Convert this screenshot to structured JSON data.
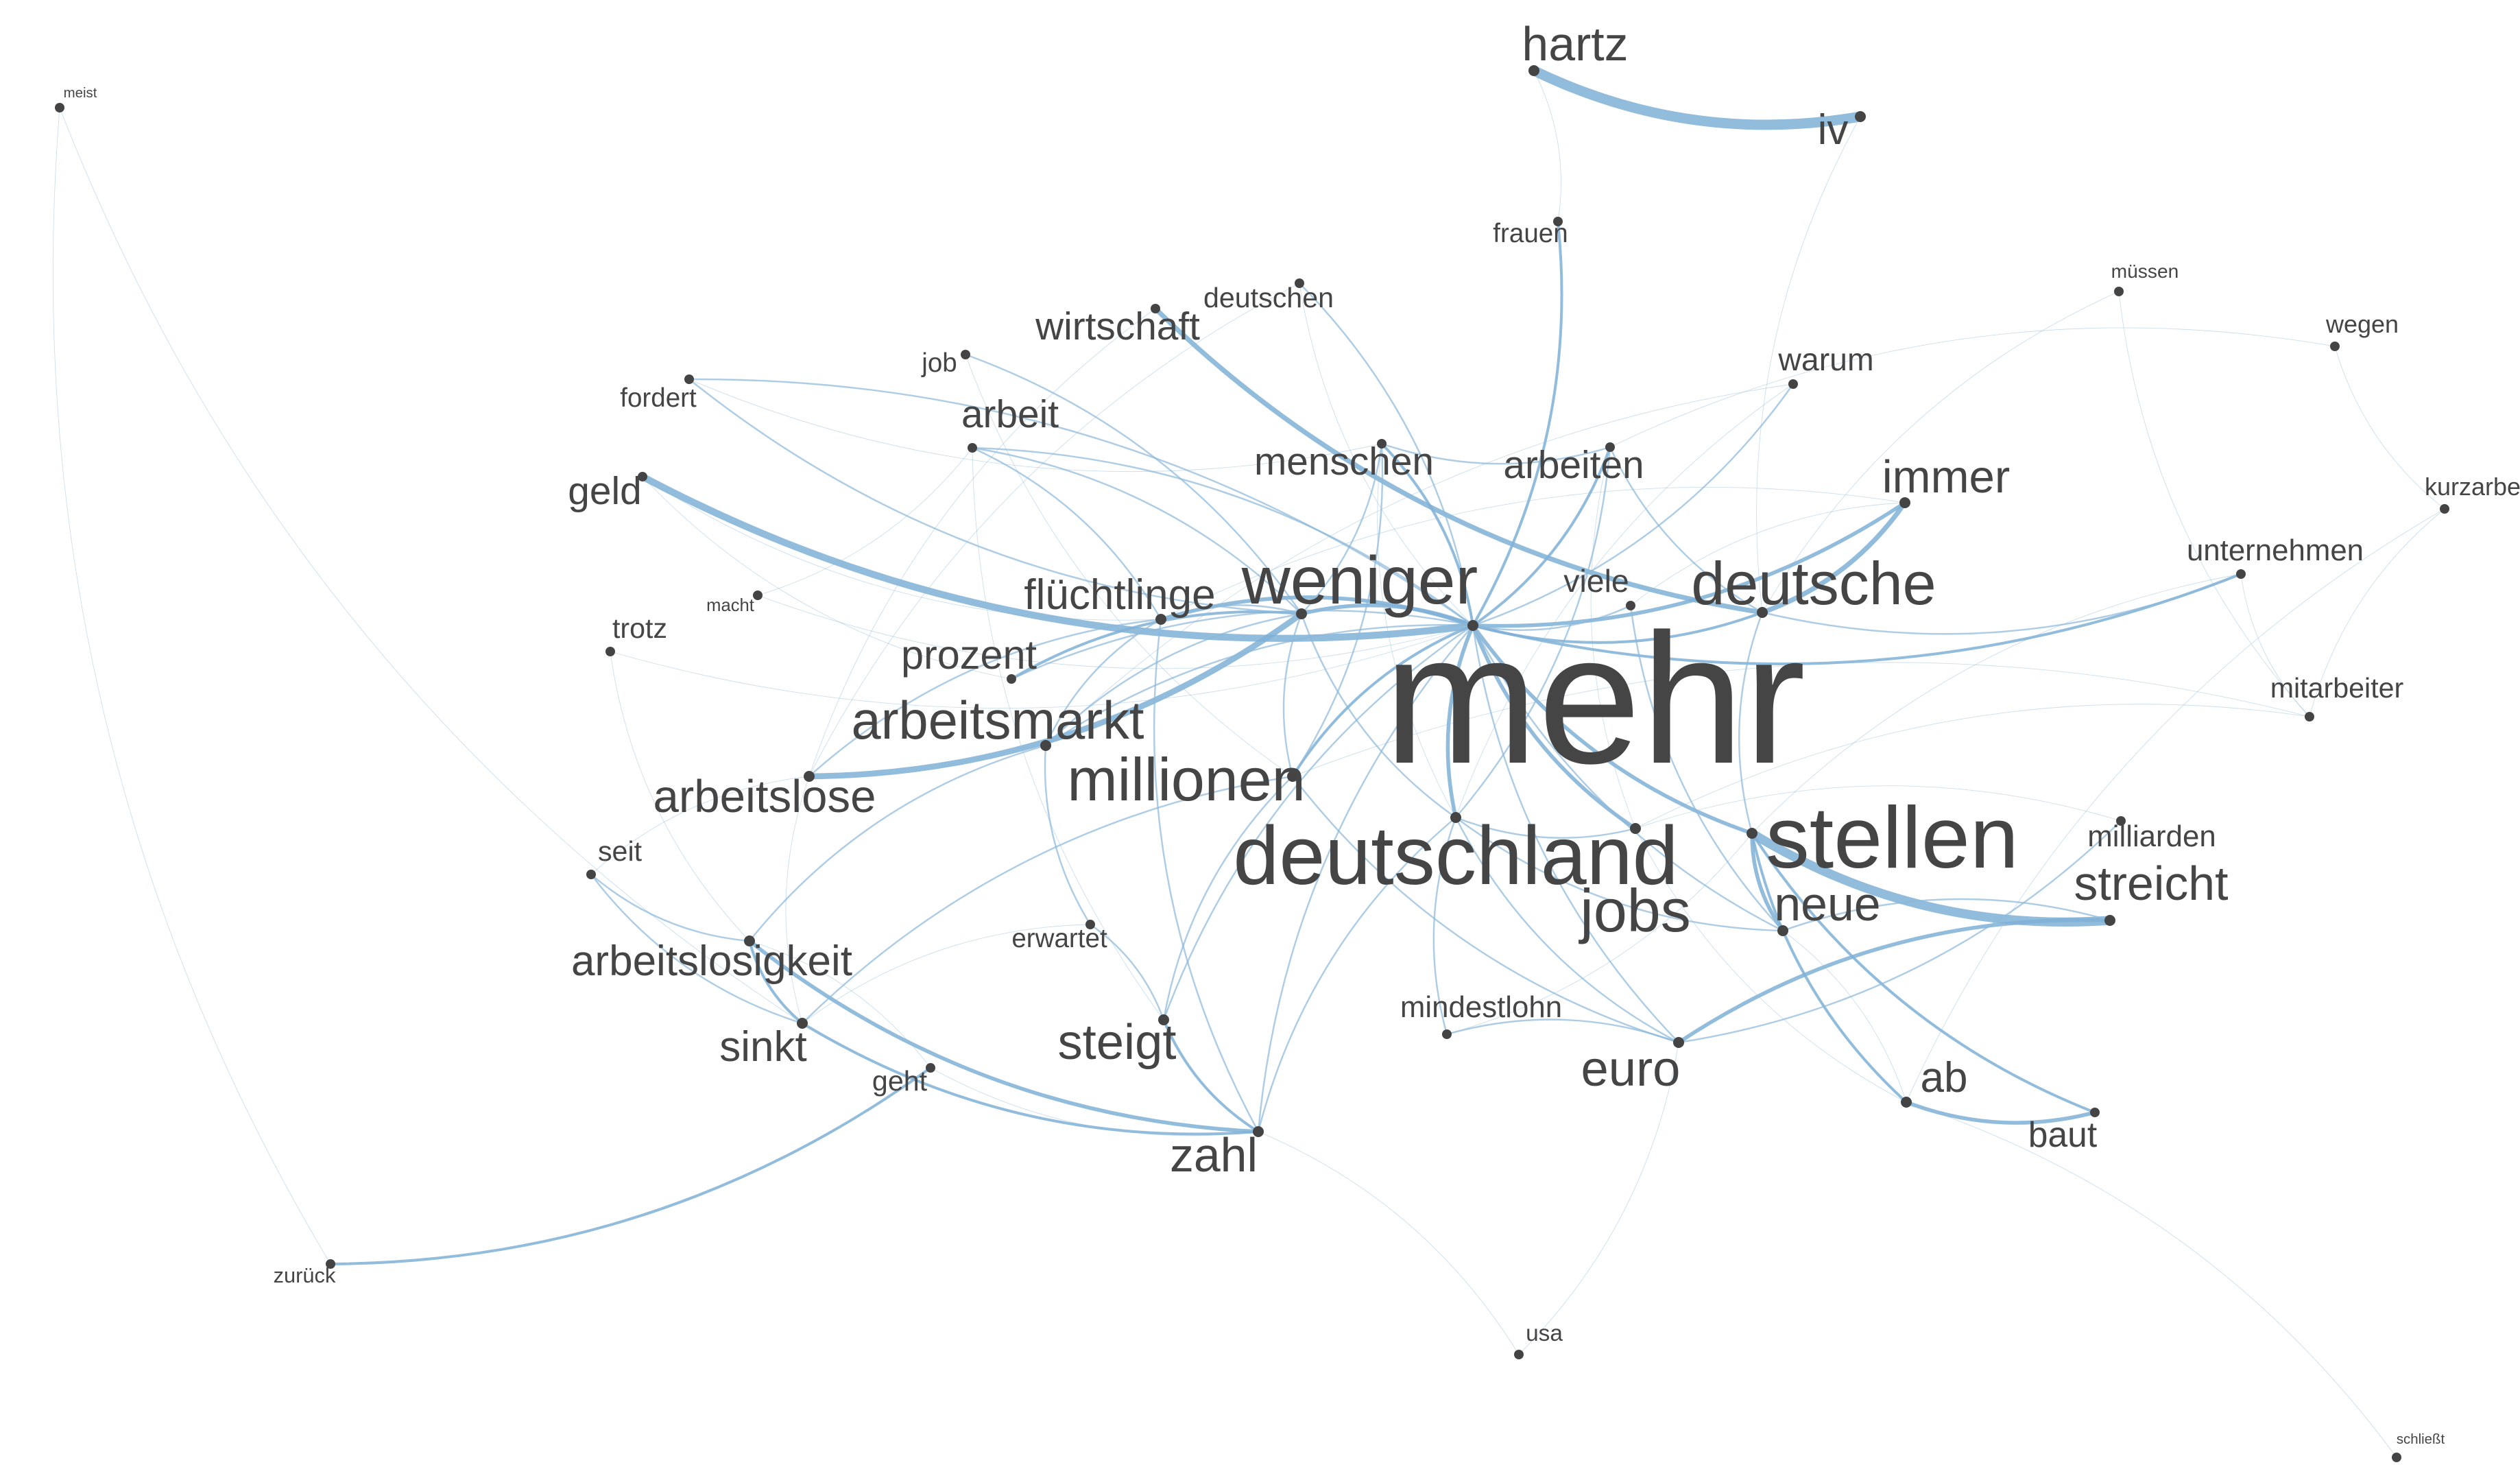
{
  "graph": {
    "type": "word-cooccurrence-network",
    "colors": {
      "edge": "#8cb8d8",
      "edge_strong": "#7fb0d6",
      "node": "#444444",
      "label": "#454545",
      "background": "#ffffff"
    },
    "nodes": [
      {
        "id": "mehr",
        "label": "mehr",
        "weight": 100
      },
      {
        "id": "stellen",
        "label": "stellen",
        "weight": 48
      },
      {
        "id": "deutschland",
        "label": "deutschland",
        "weight": 42
      },
      {
        "id": "weniger",
        "label": "weniger",
        "weight": 34
      },
      {
        "id": "deutsche",
        "label": "deutsche",
        "weight": 30
      },
      {
        "id": "millionen",
        "label": "millionen",
        "weight": 30
      },
      {
        "id": "jobs",
        "label": "jobs",
        "weight": 30
      },
      {
        "id": "arbeitsmarkt",
        "label": "arbeitsmarkt",
        "weight": 26
      },
      {
        "id": "steigt",
        "label": "steigt",
        "weight": 24
      },
      {
        "id": "euro",
        "label": "euro",
        "weight": 24
      },
      {
        "id": "neue",
        "label": "neue",
        "weight": 23
      },
      {
        "id": "streicht",
        "label": "streicht",
        "weight": 23
      },
      {
        "id": "zahl",
        "label": "zahl",
        "weight": 23
      },
      {
        "id": "hartz",
        "label": "hartz",
        "weight": 23
      },
      {
        "id": "arbeitslose",
        "label": "arbeitslose",
        "weight": 22
      },
      {
        "id": "immer",
        "label": "immer",
        "weight": 22
      },
      {
        "id": "flüchtlinge",
        "label": "flüchtlinge",
        "weight": 20
      },
      {
        "id": "arbeitslosigkeit",
        "label": "arbeitslosigkeit",
        "weight": 20
      },
      {
        "id": "sinkt",
        "label": "sinkt",
        "weight": 20
      },
      {
        "id": "ab",
        "label": "ab",
        "weight": 20
      },
      {
        "id": "iv",
        "label": "iv",
        "weight": 20
      },
      {
        "id": "prozent",
        "label": "prozent",
        "weight": 19
      },
      {
        "id": "geld",
        "label": "geld",
        "weight": 18
      },
      {
        "id": "menschen",
        "label": "menschen",
        "weight": 18
      },
      {
        "id": "wirtschaft",
        "label": "wirtschaft",
        "weight": 18
      },
      {
        "id": "arbeiten",
        "label": "arbeiten",
        "weight": 18
      },
      {
        "id": "arbeit",
        "label": "arbeit",
        "weight": 18
      },
      {
        "id": "baut",
        "label": "baut",
        "weight": 16
      },
      {
        "id": "viele",
        "label": "viele",
        "weight": 14
      },
      {
        "id": "warum",
        "label": "warum",
        "weight": 14
      },
      {
        "id": "unternehmen",
        "label": "unternehmen",
        "weight": 13
      },
      {
        "id": "milliarden",
        "label": "milliarden",
        "weight": 13
      },
      {
        "id": "mindestlohn",
        "label": "mindestlohn",
        "weight": 13
      },
      {
        "id": "deutschen",
        "label": "deutschen",
        "weight": 12
      },
      {
        "id": "mitarbeiter",
        "label": "mitarbeiter",
        "weight": 12
      },
      {
        "id": "seit",
        "label": "seit",
        "weight": 12
      },
      {
        "id": "trotz",
        "label": "trotz",
        "weight": 12
      },
      {
        "id": "job",
        "label": "job",
        "weight": 11
      },
      {
        "id": "fordert",
        "label": "fordert",
        "weight": 11
      },
      {
        "id": "frauen",
        "label": "frauen",
        "weight": 11
      },
      {
        "id": "geht",
        "label": "geht",
        "weight": 12
      },
      {
        "id": "erwartet",
        "label": "erwartet",
        "weight": 11
      },
      {
        "id": "kurzarbeit",
        "label": "kurzarbeit",
        "weight": 10
      },
      {
        "id": "wegen",
        "label": "wegen",
        "weight": 10
      },
      {
        "id": "usa",
        "label": "usa",
        "weight": 9
      },
      {
        "id": "zurück",
        "label": "zurück",
        "weight": 8
      },
      {
        "id": "müssen",
        "label": "müssen",
        "weight": 7
      },
      {
        "id": "macht",
        "label": "macht",
        "weight": 6
      },
      {
        "id": "meist",
        "label": "meist",
        "weight": 4
      },
      {
        "id": "schließt",
        "label": "schließt",
        "weight": 4
      }
    ],
    "edges": [
      {
        "source": "hartz",
        "target": "iv",
        "weight": 10
      },
      {
        "source": "stellen",
        "target": "streicht",
        "weight": 9
      },
      {
        "source": "geld",
        "target": "mehr",
        "weight": 7
      },
      {
        "source": "arbeitslose",
        "target": "weniger",
        "weight": 6
      },
      {
        "source": "wirtschaft",
        "target": "deutsche",
        "weight": 5
      },
      {
        "source": "deutsche",
        "target": "immer",
        "weight": 5
      },
      {
        "source": "mehr",
        "target": "immer",
        "weight": 4
      },
      {
        "source": "mehr",
        "target": "flüchtlinge",
        "weight": 4
      },
      {
        "source": "mehr",
        "target": "jobs",
        "weight": 4
      },
      {
        "source": "mehr",
        "target": "stellen",
        "weight": 4
      },
      {
        "source": "mehr",
        "target": "weniger",
        "weight": 4
      },
      {
        "source": "mehr",
        "target": "deutschland",
        "weight": 4
      },
      {
        "source": "stellen",
        "target": "neue",
        "weight": 4
      },
      {
        "source": "streicht",
        "target": "euro",
        "weight": 4
      },
      {
        "source": "ab",
        "target": "baut",
        "weight": 4
      },
      {
        "source": "stellen",
        "target": "baut",
        "weight": 3
      },
      {
        "source": "stellen",
        "target": "ab",
        "weight": 3
      },
      {
        "source": "arbeitslosigkeit",
        "target": "zahl",
        "weight": 4
      },
      {
        "source": "sinkt",
        "target": "zahl",
        "weight": 3
      },
      {
        "source": "steigt",
        "target": "zahl",
        "weight": 3
      },
      {
        "source": "arbeitslosigkeit",
        "target": "sinkt",
        "weight": 3
      },
      {
        "source": "zurück",
        "target": "geht",
        "weight": 3
      },
      {
        "source": "mehr",
        "target": "frauen",
        "weight": 3
      },
      {
        "source": "mehr",
        "target": "arbeiten",
        "weight": 3
      },
      {
        "source": "mehr",
        "target": "menschen",
        "weight": 3
      },
      {
        "source": "mehr",
        "target": "millionen",
        "weight": 3
      },
      {
        "source": "mehr",
        "target": "deutsche",
        "weight": 3
      },
      {
        "source": "mehr",
        "target": "unternehmen",
        "weight": 3
      },
      {
        "source": "mehr",
        "target": "arbeit",
        "weight": 2
      },
      {
        "source": "mehr",
        "target": "fordert",
        "weight": 2
      },
      {
        "source": "mehr",
        "target": "euro",
        "weight": 2
      },
      {
        "source": "mehr",
        "target": "neue",
        "weight": 2
      },
      {
        "source": "mehr",
        "target": "viele",
        "weight": 2
      },
      {
        "source": "mehr",
        "target": "warum",
        "weight": 2
      },
      {
        "source": "mehr",
        "target": "zahl",
        "weight": 2
      },
      {
        "source": "mehr",
        "target": "steigt",
        "weight": 2
      },
      {
        "source": "mehr",
        "target": "prozent",
        "weight": 2
      },
      {
        "source": "mehr",
        "target": "arbeitsmarkt",
        "weight": 2
      },
      {
        "source": "mehr",
        "target": "deutschen",
        "weight": 2
      },
      {
        "source": "weniger",
        "target": "prozent",
        "weight": 3
      },
      {
        "source": "weniger",
        "target": "arbeitsmarkt",
        "weight": 2
      },
      {
        "source": "weniger",
        "target": "flüchtlinge",
        "weight": 2
      },
      {
        "source": "weniger",
        "target": "menschen",
        "weight": 2
      },
      {
        "source": "weniger",
        "target": "job",
        "weight": 2
      },
      {
        "source": "weniger",
        "target": "arbeit",
        "weight": 2
      },
      {
        "source": "weniger",
        "target": "deutschland",
        "weight": 2
      },
      {
        "source": "weniger",
        "target": "millionen",
        "weight": 2
      },
      {
        "source": "flüchtlinge",
        "target": "arbeitsmarkt",
        "weight": 2
      },
      {
        "source": "flüchtlinge",
        "target": "arbeit",
        "weight": 2
      },
      {
        "source": "flüchtlinge",
        "target": "zahl",
        "weight": 2
      },
      {
        "source": "flüchtlinge",
        "target": "arbeitslose",
        "weight": 2
      },
      {
        "source": "arbeitsmarkt",
        "target": "erwartet",
        "weight": 2
      },
      {
        "source": "arbeitsmarkt",
        "target": "arbeitslosigkeit",
        "weight": 2
      },
      {
        "source": "millionen",
        "target": "sinkt",
        "weight": 2
      },
      {
        "source": "millionen",
        "target": "steigt",
        "weight": 2
      },
      {
        "source": "millionen",
        "target": "menschen",
        "weight": 2
      },
      {
        "source": "millionen",
        "target": "euro",
        "weight": 2
      },
      {
        "source": "deutschland",
        "target": "jobs",
        "weight": 2
      },
      {
        "source": "deutschland",
        "target": "euro",
        "weight": 2
      },
      {
        "source": "deutschland",
        "target": "neue",
        "weight": 2
      },
      {
        "source": "deutschland",
        "target": "zahl",
        "weight": 2
      },
      {
        "source": "deutschland",
        "target": "mindestlohn",
        "weight": 2
      },
      {
        "source": "deutschland",
        "target": "arbeiten",
        "weight": 2
      },
      {
        "source": "deutsche",
        "target": "stellen",
        "weight": 2
      },
      {
        "source": "deutsche",
        "target": "unternehmen",
        "weight": 2
      },
      {
        "source": "arbeiten",
        "target": "deutsche",
        "weight": 2
      },
      {
        "source": "menschen",
        "target": "arbeiten",
        "weight": 2
      },
      {
        "source": "euro",
        "target": "mindestlohn",
        "weight": 2
      },
      {
        "source": "euro",
        "target": "milliarden",
        "weight": 2
      },
      {
        "source": "steigt",
        "target": "erwartet",
        "weight": 2
      },
      {
        "source": "seit",
        "target": "sinkt",
        "weight": 2
      },
      {
        "source": "seit",
        "target": "arbeitslosigkeit",
        "weight": 2
      },
      {
        "source": "fordert",
        "target": "weniger",
        "weight": 2
      },
      {
        "source": "fordert",
        "target": "menschen",
        "weight": 1
      },
      {
        "source": "job",
        "target": "millionen",
        "weight": 1
      },
      {
        "source": "arbeit",
        "target": "steigt",
        "weight": 1
      },
      {
        "source": "viele",
        "target": "neue",
        "weight": 2
      },
      {
        "source": "warum",
        "target": "deutschland",
        "weight": 1
      },
      {
        "source": "frauen",
        "target": "hartz",
        "weight": 1
      },
      {
        "source": "iv",
        "target": "deutsche",
        "weight": 1
      },
      {
        "source": "meist",
        "target": "zurück",
        "weight": 1
      },
      {
        "source": "meist",
        "target": "sinkt",
        "weight": 1
      },
      {
        "source": "müssen",
        "target": "mitarbeiter",
        "weight": 1
      },
      {
        "source": "müssen",
        "target": "deutsche",
        "weight": 1
      },
      {
        "source": "wegen",
        "target": "kurzarbeit",
        "weight": 1
      },
      {
        "source": "wegen",
        "target": "arbeiten",
        "weight": 1
      },
      {
        "source": "kurzarbeit",
        "target": "mitarbeiter",
        "weight": 1
      },
      {
        "source": "kurzarbeit",
        "target": "ab",
        "weight": 1
      },
      {
        "source": "unternehmen",
        "target": "mitarbeiter",
        "weight": 1
      },
      {
        "source": "unternehmen",
        "target": "stellen",
        "weight": 1
      },
      {
        "source": "mitarbeiter",
        "target": "jobs",
        "weight": 1
      },
      {
        "source": "mitarbeiter",
        "target": "millionen",
        "weight": 1
      },
      {
        "source": "milliarden",
        "target": "jobs",
        "weight": 1
      },
      {
        "source": "schließt",
        "target": "ab",
        "weight": 1
      },
      {
        "source": "usa",
        "target": "euro",
        "weight": 1
      },
      {
        "source": "usa",
        "target": "zahl",
        "weight": 1
      },
      {
        "source": "trotz",
        "target": "arbeitslosigkeit",
        "weight": 1
      },
      {
        "source": "trotz",
        "target": "mehr",
        "weight": 1
      },
      {
        "source": "macht",
        "target": "mehr",
        "weight": 1
      },
      {
        "source": "macht",
        "target": "arbeit",
        "weight": 1
      },
      {
        "source": "geld",
        "target": "prozent",
        "weight": 1
      },
      {
        "source": "geld",
        "target": "flüchtlinge",
        "weight": 1
      },
      {
        "source": "deutschen",
        "target": "arbeitslose",
        "weight": 1
      },
      {
        "source": "deutschen",
        "target": "mehr",
        "weight": 1
      },
      {
        "source": "wirtschaft",
        "target": "arbeitslose",
        "weight": 1
      },
      {
        "source": "erwartet",
        "target": "sinkt",
        "weight": 1
      },
      {
        "source": "geht",
        "target": "arbeitslosigkeit",
        "weight": 1
      },
      {
        "source": "geht",
        "target": "zahl",
        "weight": 1
      },
      {
        "source": "mindestlohn",
        "target": "stellen",
        "weight": 1
      },
      {
        "source": "ab",
        "target": "neue",
        "weight": 1
      },
      {
        "source": "jobs",
        "target": "ab",
        "weight": 1
      },
      {
        "source": "streicht",
        "target": "neue",
        "weight": 2
      },
      {
        "source": "immer",
        "target": "viele",
        "weight": 1
      },
      {
        "source": "immer",
        "target": "flüchtlinge",
        "weight": 1
      },
      {
        "source": "warum",
        "target": "arbeitsmarkt",
        "weight": 1
      },
      {
        "source": "arbeiten",
        "target": "jobs",
        "weight": 1
      },
      {
        "source": "menschen",
        "target": "deutschland",
        "weight": 1
      },
      {
        "source": "arbeitslose",
        "target": "sinkt",
        "weight": 1
      },
      {
        "source": "arbeitslose",
        "target": "seit",
        "weight": 1
      }
    ]
  }
}
